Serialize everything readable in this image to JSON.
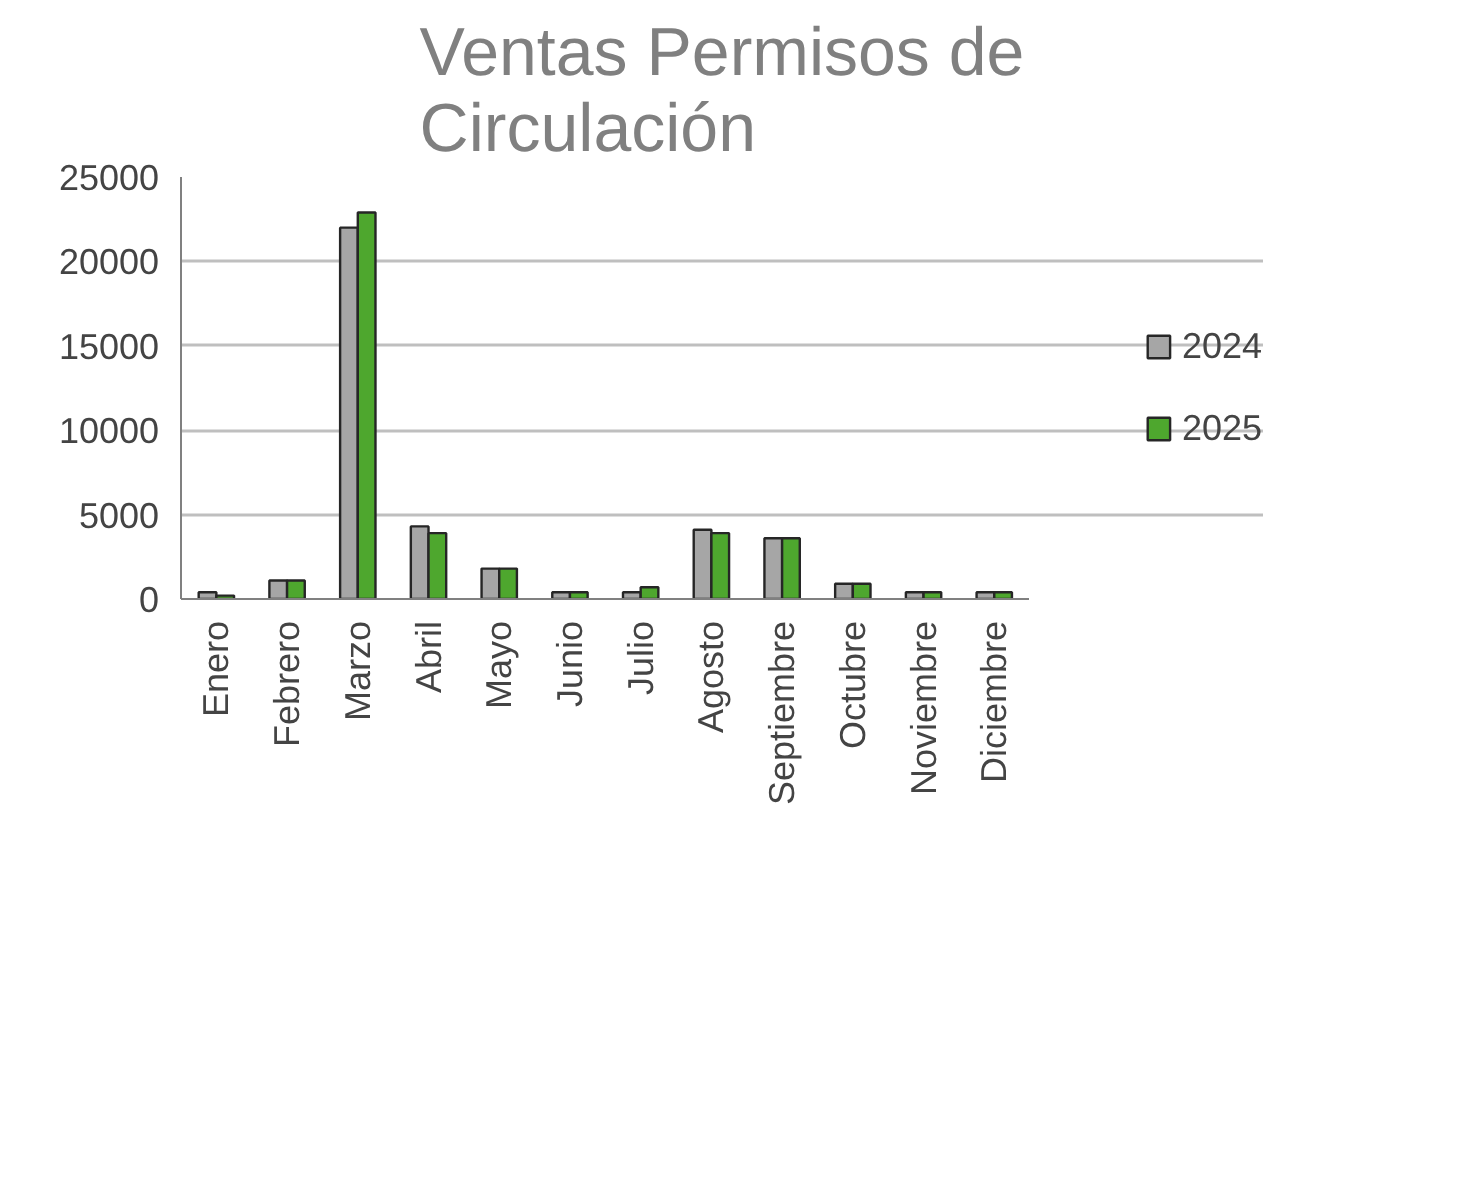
{
  "chart_data": {
    "type": "bar",
    "title": "Ventas Permisos de\nCirculación",
    "categories": [
      "Enero",
      "Febrero",
      "Marzo",
      "Abril",
      "Mayo",
      "Junio",
      "Julio",
      "Agosto",
      "Septiembre",
      "Octubre",
      "Noviembre",
      "Diciembre"
    ],
    "series": [
      {
        "name": "2024",
        "color": "#a6a6a6",
        "values": [
          400,
          1100,
          22000,
          4300,
          1800,
          400,
          400,
          4100,
          3600,
          900,
          400,
          400
        ]
      },
      {
        "name": "2025",
        "color": "#4ea72e",
        "values": [
          200,
          1100,
          22900,
          3900,
          1800,
          400,
          700,
          3900,
          3600,
          900,
          400,
          400
        ]
      }
    ],
    "ylim": [
      0,
      25000
    ],
    "yticks": [
      0,
      5000,
      10000,
      15000,
      20000,
      25000
    ],
    "grid": "y",
    "legend": "right"
  }
}
